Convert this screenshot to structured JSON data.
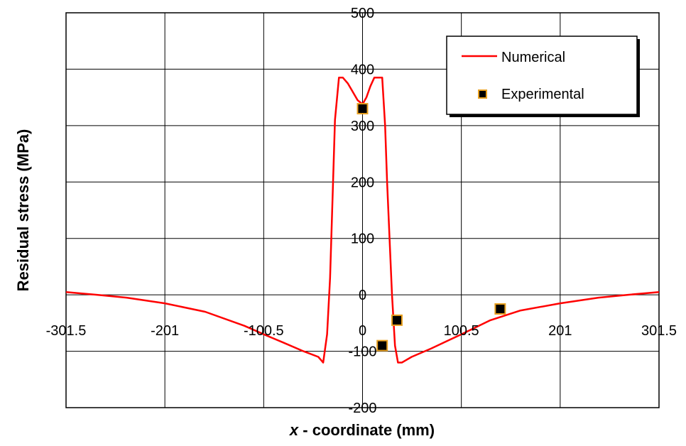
{
  "chart_data": {
    "type": "line",
    "title": "",
    "xlabel_var": "x",
    "xlabel_rest": " - coordinate (mm)",
    "ylabel": "Residual stress (MPa)",
    "xlim": [
      -301.5,
      301.5
    ],
    "ylim": [
      -200,
      500
    ],
    "grid": true,
    "legend_position": "top-right",
    "x_ticks": [
      -301.5,
      -201,
      -100.5,
      0,
      100.5,
      201,
      301.5
    ],
    "x_tick_labels": [
      "-301.5",
      "-201",
      "-100.5",
      "0",
      "100.5",
      "201",
      "301.5"
    ],
    "y_ticks": [
      -200,
      -100,
      0,
      100,
      200,
      300,
      400,
      500
    ],
    "y_tick_labels": [
      "-200",
      "-100",
      "0",
      "100",
      "200",
      "300",
      "400",
      "500"
    ],
    "series": [
      {
        "name": "Numerical",
        "kind": "line",
        "color": "#ff0000",
        "x": [
          -301.5,
          -270,
          -240,
          -201,
          -160,
          -120,
          -100.5,
          -80,
          -60,
          -45,
          -40,
          -36,
          -33,
          -30,
          -28,
          -24,
          -20,
          -15,
          -10,
          -5,
          0,
          4,
          8,
          12,
          16,
          20,
          23,
          25,
          30,
          33,
          36,
          40,
          50,
          70,
          100.5,
          130,
          160,
          201,
          240,
          270,
          301.5
        ],
        "y": [
          5,
          0,
          -5,
          -15,
          -30,
          -55,
          -70,
          -85,
          -100,
          -110,
          -120,
          -70,
          30,
          200,
          310,
          385,
          385,
          375,
          360,
          345,
          338,
          350,
          370,
          385,
          385,
          385,
          300,
          200,
          0,
          -90,
          -120,
          -120,
          -110,
          -95,
          -70,
          -45,
          -28,
          -15,
          -5,
          0,
          5
        ]
      },
      {
        "name": "Experimental",
        "kind": "scatter",
        "color": "#000000",
        "edge_color": "#e8a020",
        "x": [
          0,
          20,
          35,
          140
        ],
        "y": [
          330,
          -90,
          -45,
          -25
        ]
      }
    ]
  }
}
